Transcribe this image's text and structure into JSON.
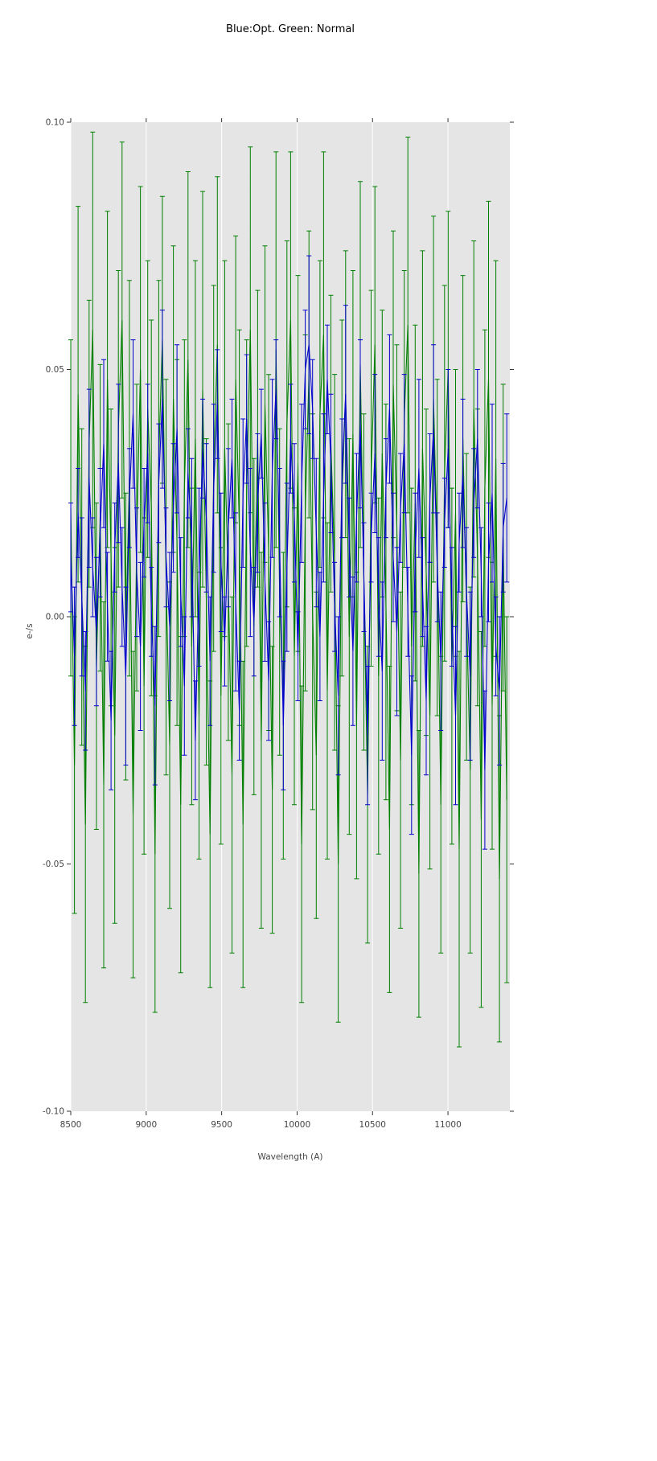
{
  "page": {
    "background": "#ffffff"
  },
  "chart_data": {
    "type": "line",
    "title": "Blue:Opt. Green: Normal",
    "xlabel": "Wavelength (A)",
    "ylabel": "e-/s",
    "xlim": [
      8500,
      11410
    ],
    "ylim": [
      -0.1,
      0.1
    ],
    "x_ticks": [
      8500,
      9000,
      9500,
      10000,
      10500,
      11000
    ],
    "x_tick_labels": [
      "8500",
      "9000",
      "9500",
      "10000",
      "10500",
      "11000"
    ],
    "y_ticks": [
      0.1,
      0.05,
      0.0,
      -0.05,
      -0.1
    ],
    "y_tick_labels": [
      "0.10",
      "0.05",
      "0.00",
      "-0.05",
      "-0.10"
    ],
    "plot_bg": "#e5e5e5",
    "grid_color": "#ffffff",
    "grid": "vertical",
    "legend": "none (encoded in title)",
    "x_start": 8500,
    "x_end": 11390,
    "series": [
      {
        "name": "Opt",
        "color": "#0000cc",
        "style": "line-with-errorbars",
        "y": [
          0.012,
          -0.008,
          0.021,
          0.004,
          -0.015,
          0.028,
          0.01,
          -0.003,
          0.017,
          0.035,
          0.002,
          -0.021,
          0.014,
          0.031,
          0.006,
          -0.012,
          0.024,
          0.041,
          0.009,
          -0.006,
          0.019,
          0.033,
          0.001,
          -0.018,
          0.027,
          0.044,
          0.012,
          -0.002,
          0.022,
          0.038,
          0.005,
          -0.014,
          0.029,
          0.016,
          -0.025,
          0.008,
          0.034,
          0.02,
          -0.009,
          0.026,
          0.043,
          0.011,
          -0.005,
          0.018,
          0.032,
          0.003,
          -0.019,
          0.025,
          0.04,
          0.013,
          -0.001,
          0.023,
          0.037,
          0.007,
          -0.013,
          0.03,
          0.046,
          0.015,
          -0.022,
          0.01,
          0.036,
          0.021,
          -0.008,
          0.027,
          0.05,
          0.055,
          0.042,
          0.017,
          -0.004,
          0.024,
          0.048,
          0.031,
          0.002,
          -0.016,
          0.028,
          0.045,
          0.014,
          -0.007,
          0.02,
          0.039,
          0.008,
          -0.024,
          0.016,
          0.033,
          0.004,
          -0.011,
          0.026,
          0.042,
          0.012,
          -0.003,
          0.022,
          0.035,
          0.001,
          -0.028,
          0.013,
          0.03,
          0.006,
          -0.017,
          0.024,
          0.038,
          0.01,
          -0.009,
          0.019,
          0.034,
          0.002,
          -0.02,
          0.015,
          0.029,
          0.005,
          -0.012,
          0.023,
          0.036,
          0.009,
          -0.031,
          0.011,
          0.025,
          -0.006,
          -0.015,
          0.018,
          0.024
        ],
        "yerr": [
          0.011,
          0.014,
          0.009,
          0.016,
          0.012,
          0.018,
          0.01,
          0.015,
          0.013,
          0.017,
          0.011,
          0.014,
          0.009,
          0.016,
          0.012,
          0.018,
          0.01,
          0.015,
          0.013,
          0.017,
          0.011,
          0.014,
          0.009,
          0.016,
          0.012,
          0.018,
          0.01,
          0.015,
          0.013,
          0.017,
          0.011,
          0.014,
          0.009,
          0.016,
          0.012,
          0.018,
          0.01,
          0.015,
          0.013,
          0.017,
          0.011,
          0.014,
          0.009,
          0.016,
          0.012,
          0.018,
          0.01,
          0.015,
          0.013,
          0.017,
          0.011,
          0.014,
          0.009,
          0.016,
          0.012,
          0.018,
          0.01,
          0.015,
          0.013,
          0.017,
          0.011,
          0.014,
          0.009,
          0.016,
          0.012,
          0.018,
          0.01,
          0.015,
          0.013,
          0.017,
          0.011,
          0.014,
          0.009,
          0.016,
          0.012,
          0.018,
          0.01,
          0.015,
          0.013,
          0.017,
          0.011,
          0.014,
          0.009,
          0.016,
          0.012,
          0.018,
          0.01,
          0.015,
          0.013,
          0.017,
          0.011,
          0.014,
          0.009,
          0.016,
          0.012,
          0.018,
          0.01,
          0.015,
          0.013,
          0.017,
          0.011,
          0.014,
          0.009,
          0.016,
          0.012,
          0.018,
          0.01,
          0.015,
          0.013,
          0.017,
          0.011,
          0.014,
          0.009,
          0.016,
          0.012,
          0.018,
          0.01,
          0.015,
          0.013,
          0.017
        ]
      },
      {
        "name": "Normal",
        "color": "#007f00",
        "style": "line-with-errorbars",
        "y": [
          0.022,
          -0.03,
          0.045,
          0.006,
          -0.042,
          0.035,
          0.058,
          -0.01,
          0.02,
          -0.034,
          0.048,
          0.012,
          -0.024,
          0.038,
          0.06,
          -0.004,
          0.028,
          -0.04,
          0.016,
          0.05,
          -0.014,
          0.042,
          0.022,
          -0.048,
          0.032,
          0.056,
          0.008,
          -0.026,
          0.044,
          0.015,
          -0.038,
          0.026,
          0.052,
          -0.006,
          0.036,
          -0.02,
          0.046,
          0.003,
          -0.044,
          0.03,
          0.055,
          -0.016,
          0.034,
          0.007,
          -0.032,
          0.048,
          0.018,
          -0.042,
          0.025,
          0.058,
          -0.002,
          0.036,
          -0.025,
          0.043,
          0.013,
          -0.035,
          0.054,
          0.005,
          -0.018,
          0.039,
          0.06,
          -0.008,
          0.031,
          -0.046,
          0.021,
          0.049,
          0.001,
          -0.028,
          0.041,
          0.057,
          -0.015,
          0.035,
          0.011,
          -0.05,
          0.024,
          0.045,
          -0.004,
          0.037,
          -0.022,
          0.051,
          0.007,
          -0.036,
          0.028,
          0.055,
          -0.012,
          0.033,
          0.003,
          -0.043,
          0.047,
          0.018,
          -0.029,
          0.04,
          0.059,
          -0.006,
          0.023,
          -0.052,
          0.034,
          0.009,
          -0.02,
          0.044,
          0.014,
          -0.038,
          0.029,
          0.05,
          -0.01,
          0.021,
          -0.047,
          0.036,
          0.002,
          -0.031,
          0.042,
          0.012,
          -0.041,
          0.026,
          0.048,
          -0.018,
          0.032,
          -0.053,
          0.016,
          -0.037
        ],
        "yerr": [
          0.034,
          0.03,
          0.038,
          0.032,
          0.036,
          0.029,
          0.04,
          0.033,
          0.031,
          0.037,
          0.034,
          0.03,
          0.038,
          0.032,
          0.036,
          0.029,
          0.04,
          0.033,
          0.031,
          0.037,
          0.034,
          0.03,
          0.038,
          0.032,
          0.036,
          0.029,
          0.04,
          0.033,
          0.031,
          0.037,
          0.034,
          0.03,
          0.038,
          0.032,
          0.036,
          0.029,
          0.04,
          0.033,
          0.031,
          0.037,
          0.034,
          0.03,
          0.038,
          0.032,
          0.036,
          0.029,
          0.04,
          0.033,
          0.031,
          0.037,
          0.034,
          0.03,
          0.038,
          0.032,
          0.036,
          0.029,
          0.04,
          0.033,
          0.031,
          0.037,
          0.034,
          0.03,
          0.038,
          0.032,
          0.036,
          0.029,
          0.04,
          0.033,
          0.031,
          0.037,
          0.034,
          0.03,
          0.038,
          0.032,
          0.036,
          0.029,
          0.04,
          0.033,
          0.031,
          0.037,
          0.034,
          0.03,
          0.038,
          0.032,
          0.036,
          0.029,
          0.04,
          0.033,
          0.031,
          0.037,
          0.034,
          0.03,
          0.038,
          0.032,
          0.036,
          0.029,
          0.04,
          0.033,
          0.031,
          0.037,
          0.034,
          0.03,
          0.038,
          0.032,
          0.036,
          0.029,
          0.04,
          0.033,
          0.031,
          0.037,
          0.034,
          0.03,
          0.038,
          0.032,
          0.036,
          0.029,
          0.04,
          0.033,
          0.031,
          0.037
        ]
      }
    ]
  }
}
